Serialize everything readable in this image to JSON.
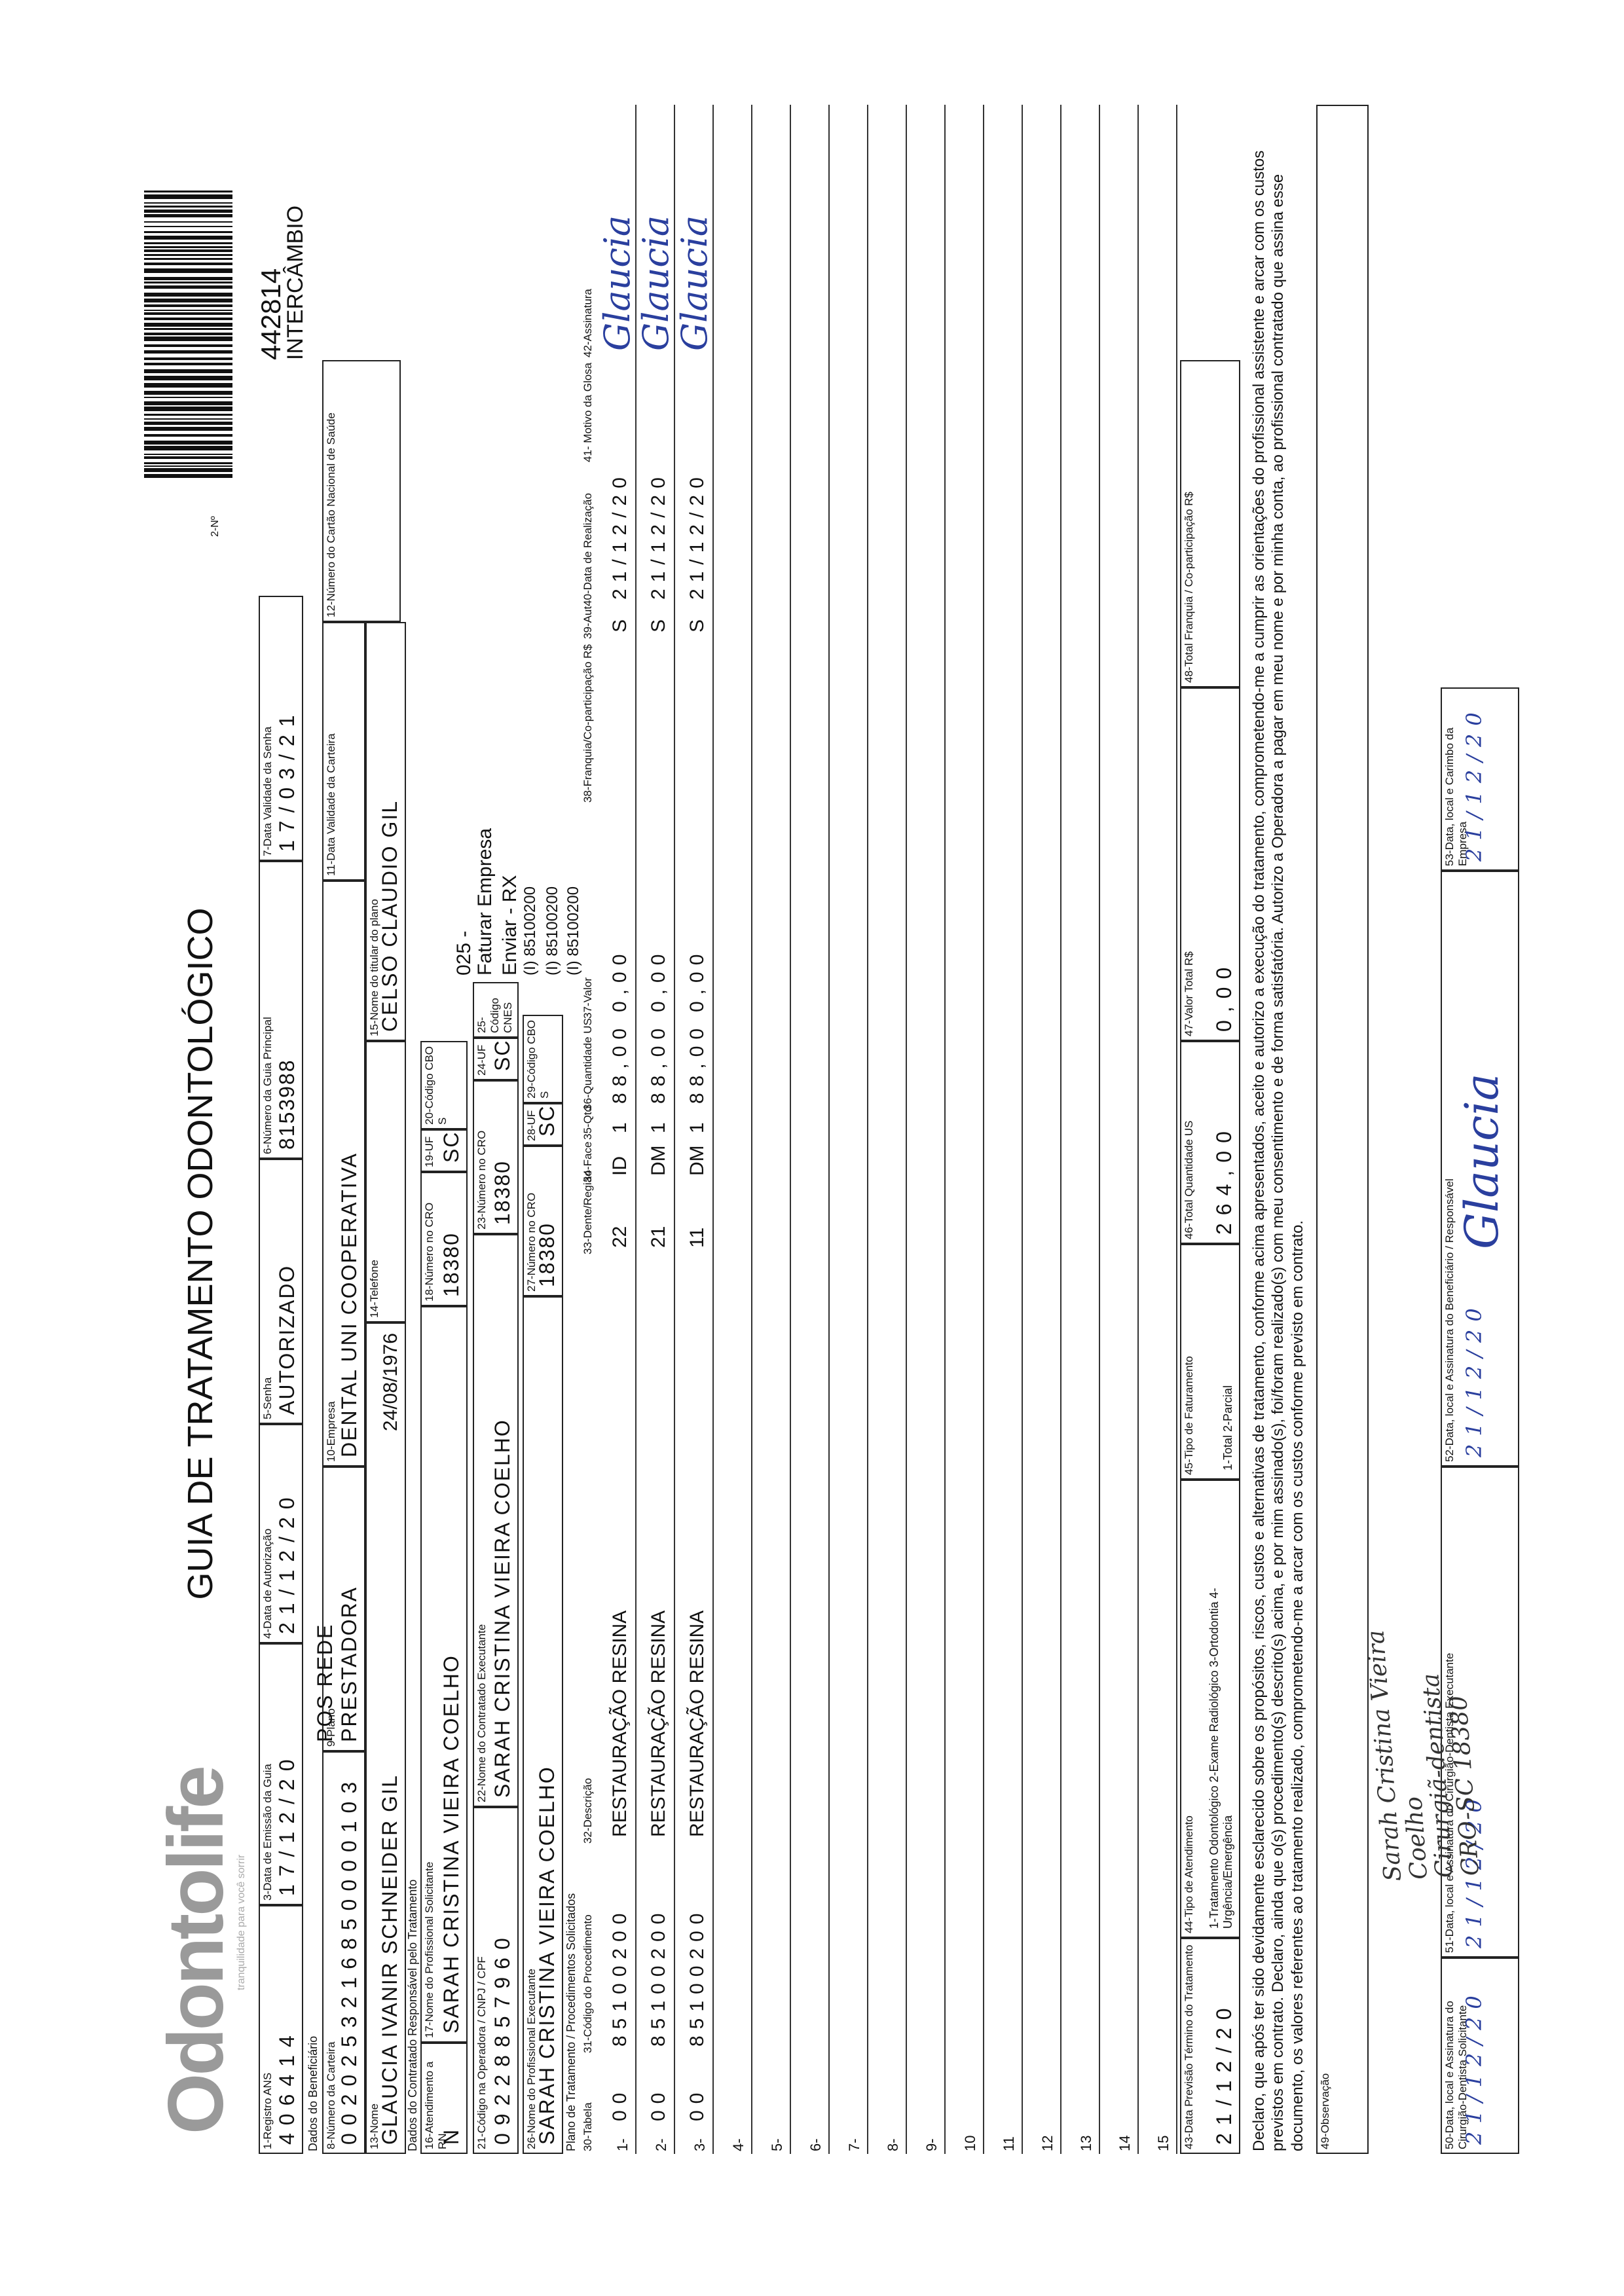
{
  "header": {
    "logo": "Odontolife",
    "tagline": "tranquilidade para você sorrir",
    "title": "GUIA DE TRATAMENTO ODONTOLÓGICO",
    "guide_number_label": "2-Nº",
    "guide_number": "442814",
    "guide_type": "INTERCÂMBIO"
  },
  "sections": {
    "beneficiary": "Dados do Beneficiário",
    "contractor": "Dados do Contratado Responsável pelo Tratamento",
    "plan": "Plano de Tratamento / Procedimentos Solicitados"
  },
  "fields": [
    {
      "label": "1-Registro ANS",
      "value": "406414"
    },
    {
      "label": "3-Data de Emissão da Guia",
      "value": "17/12/20"
    },
    {
      "label": "4-Data de Autorização",
      "value": "21/12/20"
    },
    {
      "label": "5-Senha",
      "value": "AUTORIZADO"
    },
    {
      "label": "6-Número da Guia Principal",
      "value": "8153988"
    },
    {
      "label": "7-Data Validade da Senha",
      "value": "17/03/21"
    },
    {
      "label": "8-Número da Carteira",
      "value": "0020253216850000103"
    },
    {
      "label": "9-Plano",
      "value": "POS REDE PRESTADORA"
    },
    {
      "label": "10-Empresa",
      "value": "DENTAL UNI COOPERATIVA"
    },
    {
      "label": "11-Data Validade da Carteira"
    },
    {
      "label": "12-Número do Cartão Nacional de Saúde"
    },
    {
      "label": "13-Nome",
      "value": "GLAUCIA IVANIR SCHNEIDER GIL",
      "extra": "24/08/1976"
    },
    {
      "label": "14-Telefone"
    },
    {
      "label": "15-Nome do titular do plano",
      "value": "CELSO CLAUDIO GIL"
    },
    {
      "label": "16-Atendimento a RN",
      "value": "N"
    },
    {
      "label": "17-Nome do Profissional Solicitante",
      "value": "SARAH CRISTINA VIEIRA COELHO"
    },
    {
      "label": "18-Número no CRO",
      "value": "18380"
    },
    {
      "label": "19-UF",
      "value": "SC"
    },
    {
      "label": "20-Código CBO S"
    },
    {
      "label": "21-Código na Operadora / CNPJ / CPF",
      "value": "09228857960"
    },
    {
      "label": "22-Nome do Contratado Executante",
      "value": "SARAH CRISTINA VIEIRA COELHO"
    },
    {
      "label": "23-Número no CRO",
      "value": "18380"
    },
    {
      "label": "24-UF",
      "value": "SC"
    },
    {
      "label": "25-Código CNES"
    },
    {
      "label": "26-Nome do Profissional Executante",
      "value": "SARAH CRISTINA VIEIRA COELHO"
    },
    {
      "label": "27-Número no CRO",
      "value": "18380"
    },
    {
      "label": "28-UF",
      "value": "SC"
    },
    {
      "label": "29-Código CBO S"
    },
    {
      "label": "43-Data Previsão Término do Tratamento",
      "value": "21/12/20"
    },
    {
      "label": "44-Tipo de Atendimento",
      "extra": "1-Tratamento Odontológico 2-Exame Radiológico 3-Ortodontia 4-Urgência/Emergência"
    },
    {
      "label": "45-Tipo de Faturamento",
      "extra": "1-Total 2-Parcial"
    },
    {
      "label": "46-Total Quantidade US",
      "value": "264,00"
    },
    {
      "label": "47-Valor Total R$",
      "value": "0,00"
    },
    {
      "label": "48-Total Franquia / Co-participação R$"
    },
    {
      "label": "49-Observação"
    },
    {
      "label": "50-Data, local e Assinatura do Cirurgião-Dentista Solicitante",
      "value": "21/12/20"
    },
    {
      "label": "51-Data, local e Assinatura do Cirurgião-Dentista Executante",
      "value": "21/12/20"
    },
    {
      "label": "52-Data, local e Assinatura do Beneficiário / Responsável",
      "value": "21/12/20",
      "extra": "Glaucia"
    },
    {
      "label": "53-Data, local e Carimbo da Empresa",
      "value": "21/12/20"
    }
  ],
  "notes": [
    "025 -",
    "Faturar Empresa",
    "Enviar - RX",
    "(I) 85100200",
    "(I) 85100200",
    "(I) 85100200"
  ],
  "table": {
    "columns": [
      "30-Tabela",
      "31-Código do Procedimento",
      "32-Descrição",
      "33-Dente/Região",
      "34-Face",
      "35-Qtd",
      "36-Quantidade US",
      "37-Valor",
      "38-Franquia/Co-participação R$",
      "39-Aut",
      "40-Data de Realização",
      "41- Motivo da Glosa",
      "42-Assinatura"
    ],
    "rows": [
      {
        "no": "1-",
        "table": "00",
        "code": "85100200",
        "description": "RESTAURAÇÃO RESINA",
        "tooth": "22",
        "face": "ID",
        "qty": "1",
        "us": "88,00",
        "value": "0,00",
        "aut": "S",
        "date": "21/12/20",
        "signature": "Glaucia"
      },
      {
        "no": "2-",
        "table": "00",
        "code": "85100200",
        "description": "RESTAURAÇÃO RESINA",
        "tooth": "21",
        "face": "DM",
        "qty": "1",
        "us": "88,00",
        "value": "0,00",
        "aut": "S",
        "date": "21/12/20",
        "signature": "Glaucia"
      },
      {
        "no": "3-",
        "table": "00",
        "code": "85100200",
        "description": "RESTAURAÇÃO RESINA",
        "tooth": "11",
        "face": "DM",
        "qty": "1",
        "us": "88,00",
        "value": "0,00",
        "aut": "S",
        "date": "21/12/20",
        "signature": "Glaucia"
      },
      {
        "no": "4-"
      },
      {
        "no": "5-"
      },
      {
        "no": "6-"
      },
      {
        "no": "7-"
      },
      {
        "no": "8-"
      },
      {
        "no": "9-"
      },
      {
        "no": "10"
      },
      {
        "no": "11"
      },
      {
        "no": "12"
      },
      {
        "no": "13"
      },
      {
        "no": "14"
      },
      {
        "no": "15"
      }
    ]
  },
  "declaration": "Declaro, que após ter sido devidamente esclarecido sobre os propósitos, riscos, custos e alternativas de tratamento, conforme acima apresentados, aceito e autorizo a execução do tratamento, comprometendo-me a cumprir as orientações do profissional assistente e arcar com os custos previstos em contrato. Declaro, ainda que o(s) procedimento(s) descrito(s) acima, e por mim assinado(s), foi/foram realizado(s) com meu consentimento e de forma satisfatória. Autorizo a Operadora a pagar em meu nome e por minha conta, ao profissional contratado que assina esse documento, os valores referentes ao tratamento realizado, comprometendo-me a arcar com os custos conforme previsto em contrato.",
  "stamp": [
    "Sarah Cristina Vieira Coelho",
    "Cirurgiã-dentista",
    "CRO-SC 18380"
  ]
}
